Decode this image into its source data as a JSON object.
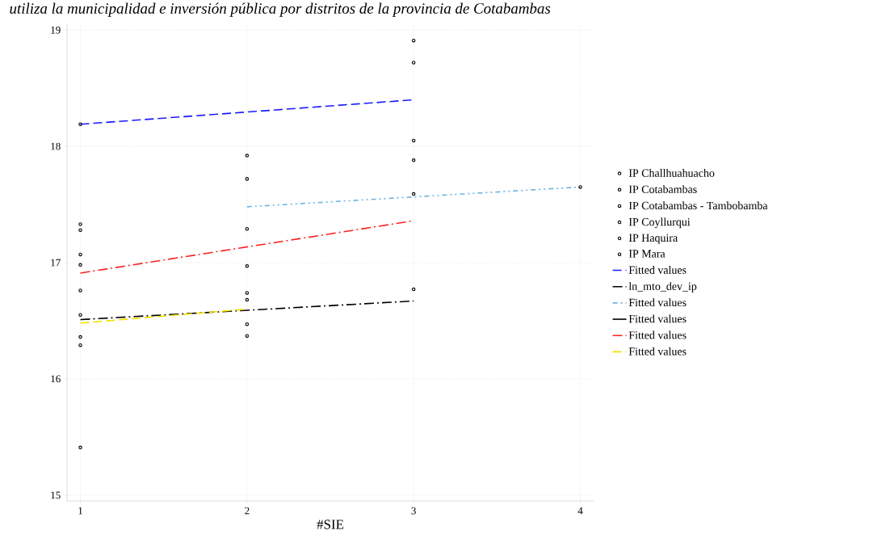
{
  "chart_data": {
    "type": "scatter",
    "title": "utiliza la municipalidad e inversión pública por distritos de la provincia de Cotabambas",
    "xlabel": "#SIE",
    "xlim": [
      0.92,
      4.08
    ],
    "ylim": [
      14.95,
      19.05
    ],
    "xticks": [
      1,
      2,
      3,
      4
    ],
    "yticks": [
      15,
      16,
      17,
      18,
      19
    ],
    "grid": true,
    "legend": "right",
    "series": [
      {
        "name": "IP Challhuahuacho",
        "marker": "circle",
        "color": "#000000",
        "x": [
          1,
          1,
          2,
          3
        ],
        "values": [
          18.19,
          17.33,
          17.92,
          18.91
        ]
      },
      {
        "name": "IP Cotabambas",
        "marker": "circle",
        "color": "#000000",
        "x": [
          1,
          1,
          2,
          3
        ],
        "values": [
          17.28,
          17.07,
          17.72,
          18.72
        ]
      },
      {
        "name": "IP Cotabambas - Tambobamba",
        "marker": "circle",
        "color": "#000000",
        "x": [
          1,
          1,
          2,
          3
        ],
        "values": [
          16.98,
          16.76,
          17.29,
          18.05
        ]
      },
      {
        "name": "IP Coyllurqui",
        "marker": "circle",
        "color": "#000000",
        "x": [
          1,
          1,
          2,
          3
        ],
        "values": [
          16.55,
          16.36,
          16.97,
          17.88
        ]
      },
      {
        "name": "IP Haquira",
        "marker": "circle",
        "color": "#000000",
        "x": [
          1,
          2,
          2,
          3
        ],
        "values": [
          16.29,
          16.74,
          16.68,
          17.59
        ]
      },
      {
        "name": "IP Mara",
        "marker": "circle",
        "color": "#000000",
        "x": [
          1,
          2,
          2,
          3,
          4
        ],
        "values": [
          15.41,
          16.47,
          16.37,
          16.77,
          17.65
        ]
      },
      {
        "name": "Fitted values",
        "type": "line",
        "color": "#1a1aff",
        "line_style": "dashed",
        "x": [
          1,
          3
        ],
        "values": [
          18.19,
          18.4
        ]
      },
      {
        "name": "ln_mto_dev_ip",
        "type": "line",
        "color": "#000000",
        "line_style": "dashdot",
        "x": [
          1,
          3
        ],
        "values": [
          16.51,
          16.67
        ]
      },
      {
        "name": "Fitted values",
        "type": "line",
        "color": "#6fb3e0",
        "line_style": "dashdotdot",
        "x": [
          2,
          4
        ],
        "values": [
          17.48,
          17.65
        ]
      },
      {
        "name": "Fitted values",
        "type": "line",
        "color": "#000000",
        "line_style": "solid"
      },
      {
        "name": "Fitted values",
        "type": "line",
        "color": "#ff2020",
        "line_style": "dashdot",
        "x": [
          1,
          3
        ],
        "values": [
          16.91,
          17.36
        ]
      },
      {
        "name": "Fitted values",
        "type": "line",
        "color": "#f0e000",
        "line_style": "dashed",
        "x": [
          1,
          2
        ],
        "values": [
          16.48,
          16.6
        ]
      }
    ]
  }
}
